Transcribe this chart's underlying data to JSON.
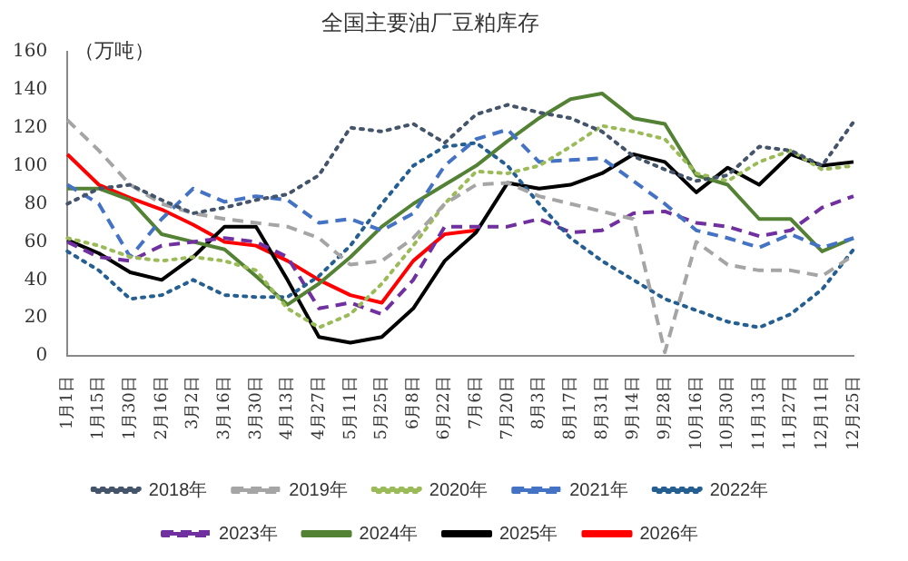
{
  "chart_data": {
    "type": "line",
    "title": "全国主要油厂豆粕库存",
    "ylabel": "（万吨）",
    "categories": [
      "1月1日",
      "1月15日",
      "1月30日",
      "2月16日",
      "3月2日",
      "3月16日",
      "3月30日",
      "4月13日",
      "4月27日",
      "5月11日",
      "5月25日",
      "6月8日",
      "6月22日",
      "7月6日",
      "7月20日",
      "8月3日",
      "8月17日",
      "8月31日",
      "9月14日",
      "9月28日",
      "10月16日",
      "10月30日",
      "11月13日",
      "11月27日",
      "12月11日",
      "12月25日"
    ],
    "ylim": [
      0,
      160
    ],
    "yticks": [
      0,
      20,
      40,
      60,
      80,
      100,
      120,
      140,
      160
    ],
    "grid": false,
    "legend": "bottom",
    "marker": "none",
    "series": [
      {
        "name": "2018年",
        "color": "#44546a",
        "line_style": "dotted",
        "values": [
          80,
          88,
          90,
          82,
          75,
          78,
          82,
          85,
          95,
          120,
          118,
          122,
          112,
          127,
          132,
          128,
          125,
          118,
          105,
          98,
          92,
          95,
          110,
          108,
          100,
          123
        ]
      },
      {
        "name": "2019年",
        "color": "#a5a5a5",
        "line_style": "dashed",
        "values": [
          124,
          108,
          90,
          80,
          75,
          72,
          70,
          68,
          62,
          48,
          50,
          62,
          80,
          90,
          91,
          84,
          80,
          76,
          72,
          2,
          60,
          48,
          45,
          45,
          42,
          53
        ]
      },
      {
        "name": "2020年",
        "color": "#9bbb59",
        "line_style": "dotted",
        "values": [
          62,
          58,
          52,
          50,
          52,
          50,
          45,
          25,
          15,
          22,
          38,
          58,
          80,
          97,
          96,
          100,
          110,
          121,
          118,
          114,
          96,
          92,
          102,
          108,
          98,
          100
        ]
      },
      {
        "name": "2021年",
        "color": "#4472c4",
        "line_style": "dashed",
        "values": [
          90,
          80,
          52,
          72,
          88,
          81,
          84,
          82,
          70,
          72,
          66,
          75,
          100,
          114,
          119,
          102,
          103,
          104,
          92,
          80,
          66,
          62,
          57,
          64,
          57,
          62
        ]
      },
      {
        "name": "2022年",
        "color": "#255e91",
        "line_style": "dotted",
        "values": [
          55,
          45,
          30,
          32,
          40,
          32,
          31,
          31,
          42,
          58,
          80,
          100,
          110,
          112,
          100,
          80,
          62,
          50,
          40,
          30,
          24,
          18,
          15,
          22,
          35,
          56
        ]
      },
      {
        "name": "2023年",
        "color": "#7030a0",
        "line_style": "dashed",
        "values": [
          60,
          52,
          50,
          58,
          60,
          62,
          60,
          52,
          25,
          28,
          22,
          40,
          68,
          68,
          68,
          72,
          65,
          66,
          75,
          76,
          70,
          68,
          63,
          66,
          78,
          84
        ]
      },
      {
        "name": "2024年",
        "color": "#548235",
        "line_style": "solid",
        "values": [
          88,
          88,
          82,
          64,
          60,
          56,
          42,
          27,
          38,
          52,
          68,
          80,
          90,
          100,
          113,
          125,
          135,
          138,
          125,
          122,
          95,
          90,
          72,
          72,
          55,
          62
        ]
      },
      {
        "name": "2025年",
        "color": "#000000",
        "line_style": "solid",
        "values": [
          61,
          54,
          44,
          40,
          52,
          68,
          68,
          40,
          10,
          7,
          10,
          25,
          50,
          65,
          91,
          88,
          90,
          96,
          106,
          102,
          86,
          99,
          90,
          106,
          100,
          102
        ]
      },
      {
        "name": "2026年",
        "color": "#ff0000",
        "line_style": "solid",
        "values": [
          106,
          90,
          83,
          77,
          69,
          60,
          58,
          50,
          40,
          32,
          28,
          50,
          64,
          66,
          null,
          null,
          null,
          null,
          null,
          null,
          null,
          null,
          null,
          null,
          null,
          null
        ]
      }
    ]
  }
}
